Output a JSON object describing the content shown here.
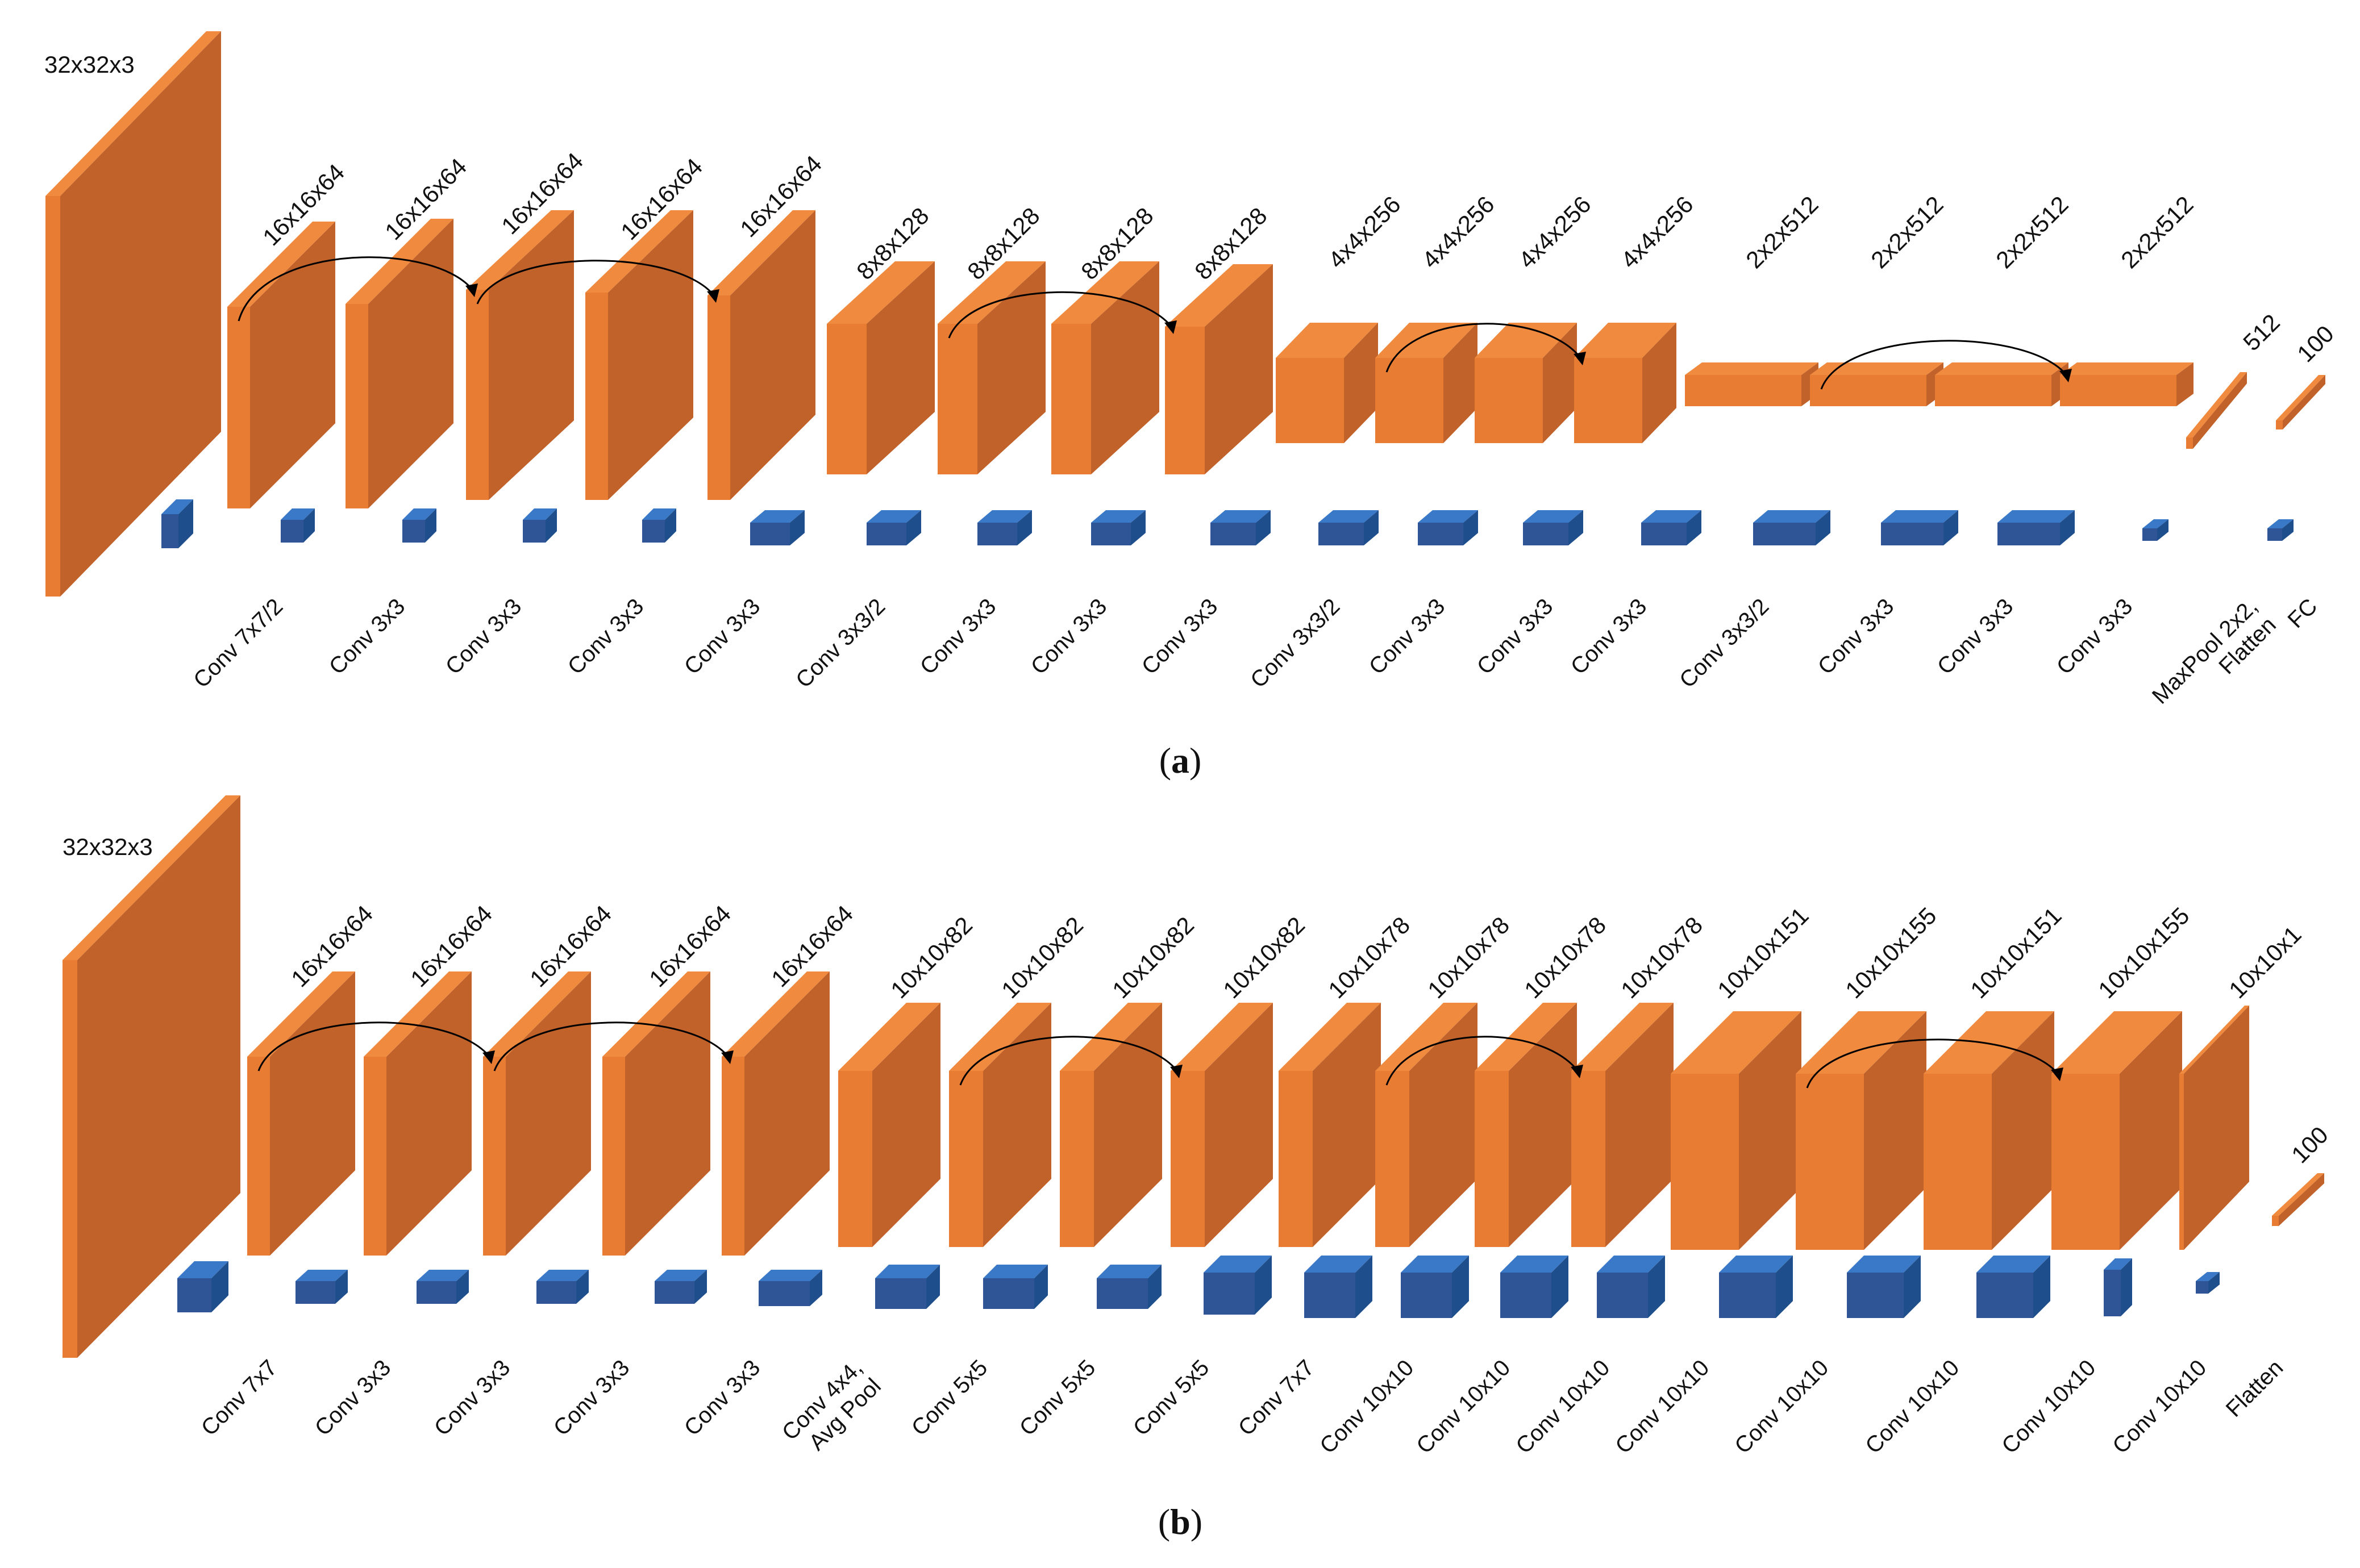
{
  "colors": {
    "layer_front": "#E87C33",
    "layer_side": "#C0622A",
    "layer_top": "#F08A3E",
    "kernel_front": "#2F5597",
    "kernel_side": "#1F4E8C",
    "kernel_top": "#3A78C8",
    "arrow": "#000000"
  },
  "diagrams": [
    {
      "id": "a",
      "caption_label": "a",
      "layers": [
        {
          "dim": "32x32x3",
          "op": "Conv 7x7/2",
          "kind": "input"
        },
        {
          "dim": "16x16x64",
          "op": "Conv 3x3",
          "kind": "feature"
        },
        {
          "dim": "16x16x64",
          "op": "Conv 3x3",
          "kind": "feature"
        },
        {
          "dim": "16x16x64",
          "op": "Conv 3x3",
          "kind": "feature"
        },
        {
          "dim": "16x16x64",
          "op": "Conv 3x3",
          "kind": "feature"
        },
        {
          "dim": "16x16x64",
          "op": "Conv 3x3/2",
          "kind": "feature"
        },
        {
          "dim": "8x8x128",
          "op": "Conv 3x3",
          "kind": "feature"
        },
        {
          "dim": "8x8x128",
          "op": "Conv 3x3",
          "kind": "feature"
        },
        {
          "dim": "8x8x128",
          "op": "Conv 3x3",
          "kind": "feature"
        },
        {
          "dim": "8x8x128",
          "op": "Conv 3x3/2",
          "kind": "feature"
        },
        {
          "dim": "4x4x256",
          "op": "Conv 3x3",
          "kind": "feature"
        },
        {
          "dim": "4x4x256",
          "op": "Conv 3x3",
          "kind": "feature"
        },
        {
          "dim": "4x4x256",
          "op": "Conv 3x3",
          "kind": "feature"
        },
        {
          "dim": "4x4x256",
          "op": "Conv 3x3/2",
          "kind": "feature"
        },
        {
          "dim": "2x2x512",
          "op": "Conv 3x3",
          "kind": "feature"
        },
        {
          "dim": "2x2x512",
          "op": "Conv 3x3",
          "kind": "feature"
        },
        {
          "dim": "2x2x512",
          "op": "Conv 3x3",
          "kind": "feature"
        },
        {
          "dim": "2x2x512",
          "op": "MaxPool 2x2, Flatten",
          "kind": "feature"
        },
        {
          "dim": "512",
          "op": "FC",
          "kind": "vector"
        },
        {
          "dim": "100",
          "op": "",
          "kind": "vector"
        }
      ],
      "skips": [
        [
          1,
          3
        ],
        [
          3,
          5
        ],
        [
          7,
          9
        ],
        [
          11,
          13
        ],
        [
          15,
          17
        ]
      ]
    },
    {
      "id": "b",
      "caption_label": "b",
      "layers": [
        {
          "dim": "32x32x3",
          "op": "Conv 7x7",
          "kind": "input"
        },
        {
          "dim": "16x16x64",
          "op": "Conv 3x3",
          "kind": "feature"
        },
        {
          "dim": "16x16x64",
          "op": "Conv 3x3",
          "kind": "feature"
        },
        {
          "dim": "16x16x64",
          "op": "Conv 3x3",
          "kind": "feature"
        },
        {
          "dim": "16x16x64",
          "op": "Conv 3x3",
          "kind": "feature"
        },
        {
          "dim": "16x16x64",
          "op": "Conv 4x4, Avg Pool",
          "kind": "feature"
        },
        {
          "dim": "10x10x82",
          "op": "Conv 5x5",
          "kind": "feature"
        },
        {
          "dim": "10x10x82",
          "op": "Conv 5x5",
          "kind": "feature"
        },
        {
          "dim": "10x10x82",
          "op": "Conv 5x5",
          "kind": "feature"
        },
        {
          "dim": "10x10x82",
          "op": "Conv 7x7",
          "kind": "feature"
        },
        {
          "dim": "10x10x78",
          "op": "Conv 10x10",
          "kind": "feature"
        },
        {
          "dim": "10x10x78",
          "op": "Conv 10x10",
          "kind": "feature"
        },
        {
          "dim": "10x10x78",
          "op": "Conv 10x10",
          "kind": "feature"
        },
        {
          "dim": "10x10x78",
          "op": "Conv 10x10",
          "kind": "feature"
        },
        {
          "dim": "10x10x151",
          "op": "Conv 10x10",
          "kind": "feature"
        },
        {
          "dim": "10x10x155",
          "op": "Conv 10x10",
          "kind": "feature"
        },
        {
          "dim": "10x10x151",
          "op": "Conv 10x10",
          "kind": "feature"
        },
        {
          "dim": "10x10x155",
          "op": "Conv 10x10",
          "kind": "feature"
        },
        {
          "dim": "10x10x1",
          "op": "Flatten",
          "kind": "feature"
        },
        {
          "dim": "100",
          "op": "",
          "kind": "vector"
        }
      ],
      "skips": [
        [
          1,
          3
        ],
        [
          3,
          5
        ],
        [
          7,
          9
        ],
        [
          11,
          13
        ],
        [
          15,
          17
        ]
      ]
    }
  ]
}
